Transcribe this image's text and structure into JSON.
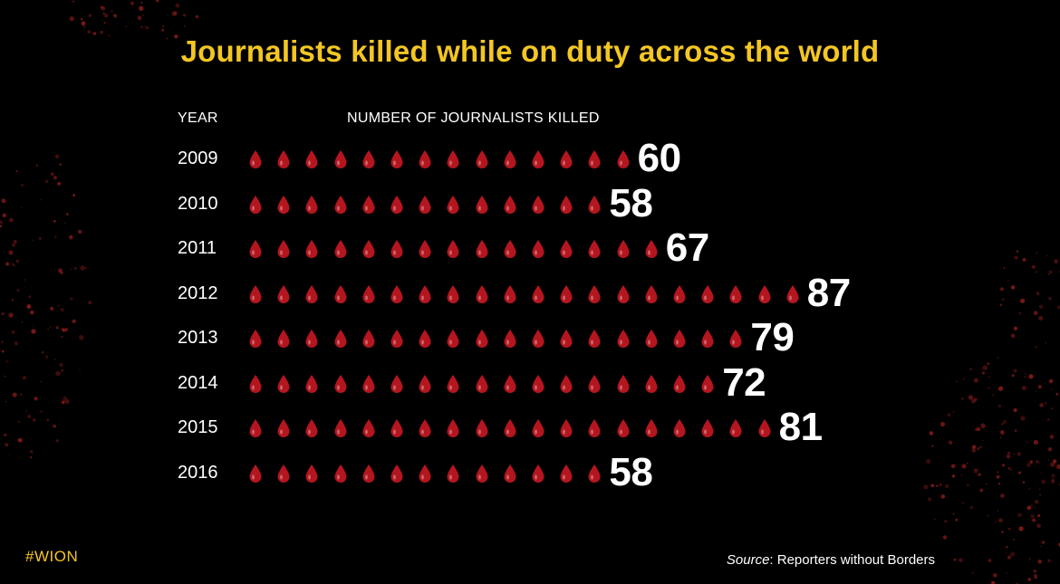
{
  "title": "Journalists killed while on duty across the world",
  "column_headers": {
    "year": "YEAR",
    "number": "NUMBER OF JOURNALISTS KILLED"
  },
  "brand": "#WION",
  "source": {
    "label": "Source",
    "text": ": Reporters without Borders"
  },
  "colors": {
    "title": "#f3c623",
    "drop": "#b4161f",
    "text": "#ffffff",
    "background": "#000000",
    "splatter": "#8e1c1c"
  },
  "icon": "blood-drop-icon",
  "chart_data": {
    "type": "bar",
    "orientation": "horizontal",
    "title": "Journalists killed while on duty across the world",
    "xlabel": "NUMBER OF JOURNALISTS KILLED",
    "ylabel": "YEAR",
    "categories": [
      "2009",
      "2010",
      "2011",
      "2012",
      "2013",
      "2014",
      "2015",
      "2016"
    ],
    "values": [
      60,
      58,
      67,
      87,
      79,
      72,
      81,
      58
    ],
    "grid": false,
    "legend": "none"
  }
}
